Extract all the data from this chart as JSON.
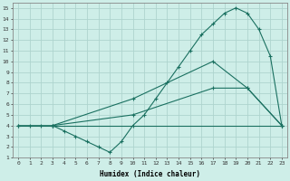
{
  "xlabel": "Humidex (Indice chaleur)",
  "background_color": "#ceeee8",
  "grid_color": "#aed4ce",
  "line_color": "#1a7060",
  "xlim": [
    -0.5,
    23.5
  ],
  "ylim": [
    1,
    15.5
  ],
  "xticks": [
    0,
    1,
    2,
    3,
    4,
    5,
    6,
    7,
    8,
    9,
    10,
    11,
    12,
    13,
    14,
    15,
    16,
    17,
    18,
    19,
    20,
    21,
    22,
    23
  ],
  "yticks": [
    1,
    2,
    3,
    4,
    5,
    6,
    7,
    8,
    9,
    10,
    11,
    12,
    13,
    14,
    15
  ],
  "line1_x": [
    0,
    3,
    23
  ],
  "line1_y": [
    4,
    4,
    4
  ],
  "line2_x": [
    3,
    10,
    17,
    20,
    23
  ],
  "line2_y": [
    4,
    5,
    7.5,
    7.5,
    4
  ],
  "line3_x": [
    3,
    10,
    17,
    20,
    23
  ],
  "line3_y": [
    4,
    6.5,
    10,
    7.5,
    4
  ],
  "line4_x": [
    0,
    1,
    2,
    3,
    4,
    5,
    6,
    7,
    8,
    9,
    10,
    11,
    12,
    13,
    14,
    15,
    16,
    17,
    18,
    19,
    20,
    21,
    22,
    23
  ],
  "line4_y": [
    4,
    4,
    4,
    4,
    3.5,
    3,
    2.5,
    2,
    1.5,
    2.5,
    4,
    5,
    6.5,
    8,
    9.5,
    11,
    12.5,
    13.5,
    14.5,
    15,
    14.5,
    13,
    10.5,
    4
  ],
  "figsize": [
    3.2,
    2.0
  ],
  "dpi": 100
}
